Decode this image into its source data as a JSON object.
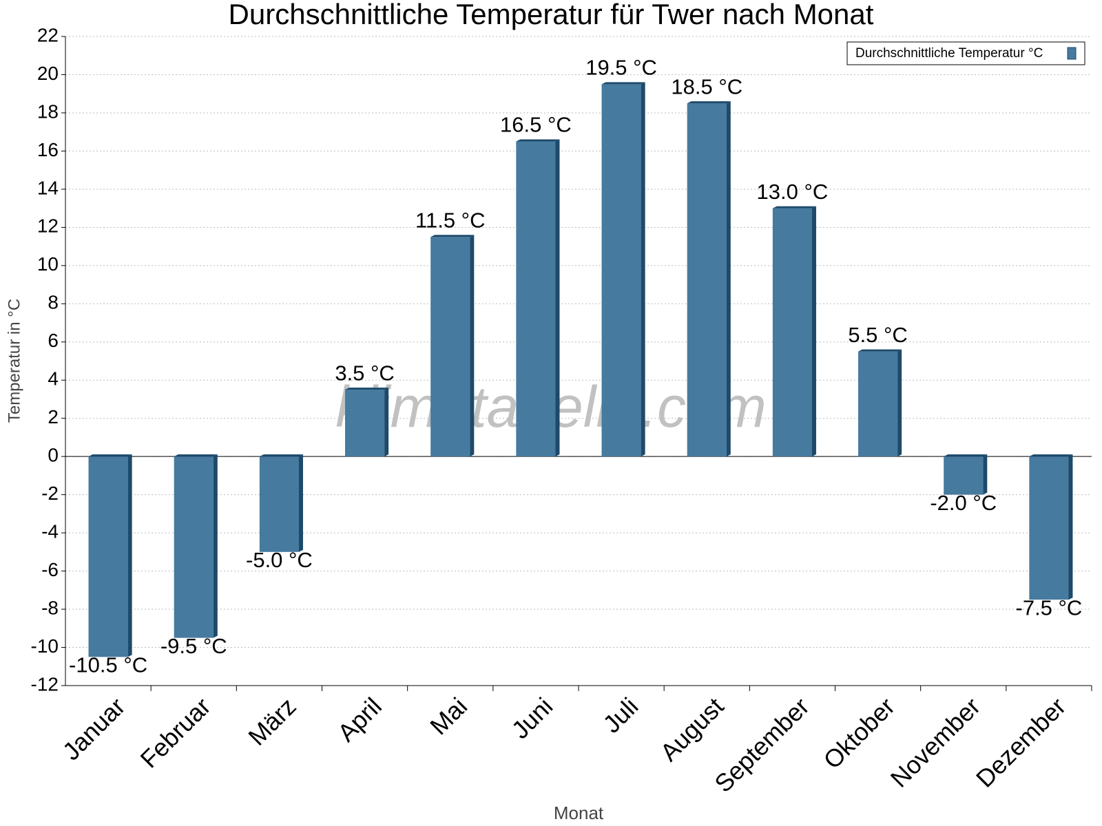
{
  "chart_data": {
    "type": "bar",
    "title": "Durchschnittliche Temperatur für Twer nach Monat",
    "x_label": "Monat",
    "y_label": "Temperatur in °C",
    "watermark": "klimatabelle.com",
    "categories": [
      "Januar",
      "Februar",
      "März",
      "April",
      "Mai",
      "Juni",
      "Juli",
      "August",
      "September",
      "Oktober",
      "November",
      "Dezember"
    ],
    "series": [
      {
        "name": "Durchschnittliche Temperatur °C",
        "color": "#467a9e",
        "values": [
          -10.5,
          -9.5,
          -5.0,
          3.5,
          11.5,
          16.5,
          19.5,
          18.5,
          13.0,
          5.5,
          -2.0,
          -7.5
        ],
        "value_labels": [
          "-10.5 °C",
          "-9.5 °C",
          "-5.0 °C",
          "3.5 °C",
          "11.5 °C",
          "16.5 °C",
          "19.5 °C",
          "18.5 °C",
          "13.0 °C",
          "5.5 °C",
          "-2.0 °C",
          "-7.5 °C"
        ]
      }
    ],
    "ylim": [
      -12,
      22
    ],
    "yticks": [
      -12,
      -10,
      -8,
      -6,
      -4,
      -2,
      0,
      2,
      4,
      6,
      8,
      10,
      12,
      14,
      16,
      18,
      20,
      22
    ],
    "grid": true,
    "legend": "top-right"
  }
}
